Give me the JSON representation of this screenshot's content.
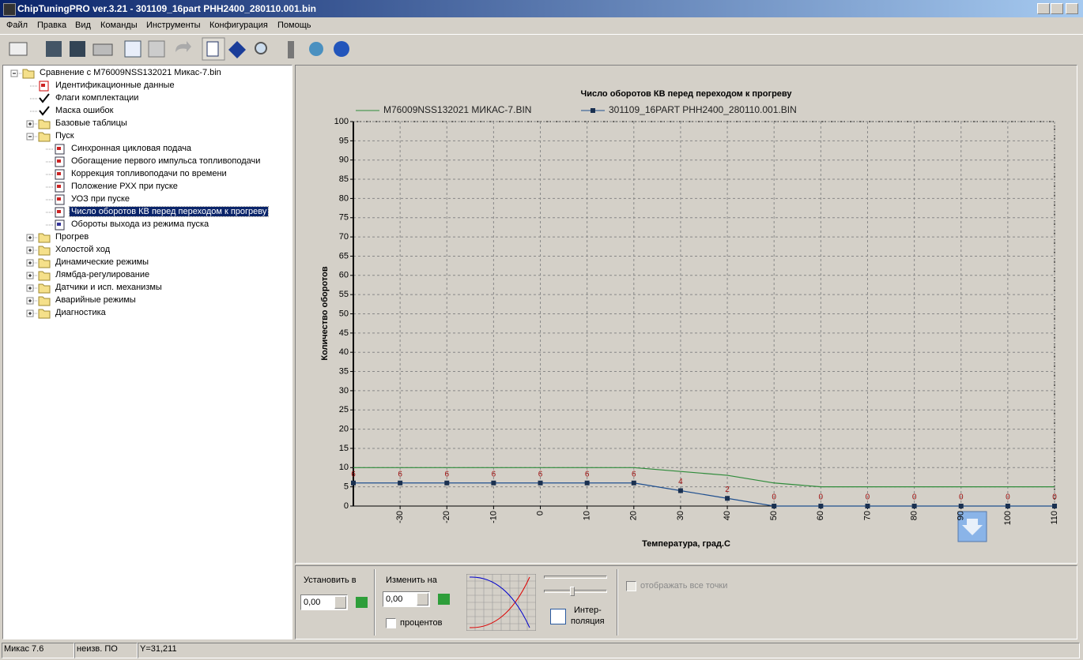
{
  "window": {
    "title": "ChipTuningPRO ver.3.21 - 301109_16part PHH2400_280110.001.bin"
  },
  "menu": [
    "Файл",
    "Правка",
    "Вид",
    "Команды",
    "Инструменты",
    "Конфигурация",
    "Помощь"
  ],
  "tree": [
    "Сравнение с M76009NSS132021 Микас-7.bin",
    "Идентификационные данные",
    "Флаги комплектации",
    "Маска ошибок",
    "Базовые таблицы",
    "Пуск",
    "Синхронная цикловая подача",
    "Обогащение первого импульса топливоподачи",
    "Коррекция топливоподачи по времени",
    "Положение РХХ при пуске",
    "УОЗ при пуске",
    "Число оборотов КВ перед переходом к прогреву",
    "Обороты выхода из режима пуска",
    "Прогрев",
    "Холостой ход",
    "Динамические режимы",
    "Лямбда-регулирование",
    "Датчики и исп. механизмы",
    "Аварийные режимы",
    "Диагностика"
  ],
  "chart_data": {
    "type": "line",
    "title": "Число оборотов КВ перед переходом к прогреву",
    "x_label": "Температура, град.С",
    "y_label": "Количество оборотов",
    "x": [
      -40,
      -30,
      -20,
      -10,
      0,
      10,
      20,
      30,
      40,
      50,
      60,
      70,
      80,
      90,
      100,
      110
    ],
    "series": [
      {
        "name": "M76009NSS132021 МИКАС-7.BIN",
        "color": "#2e8b3a",
        "values": [
          10,
          10,
          10,
          10,
          10,
          10,
          10,
          9,
          8,
          6,
          5,
          5,
          5,
          5,
          5,
          5
        ]
      },
      {
        "name": "301109_16PART PHH2400_280110.001.BIN",
        "color": "#1f4f8f",
        "marker_color": "#1a3050",
        "label_color": "#a01010",
        "values": [
          6,
          6,
          6,
          6,
          6,
          6,
          6,
          4,
          2,
          0,
          0,
          0,
          0,
          0,
          0,
          0
        ]
      }
    ],
    "xlim": [
      -40,
      110
    ],
    "ylim": [
      0,
      100
    ],
    "xticks": [
      -30,
      -20,
      -10,
      0,
      10,
      20,
      30,
      40,
      50,
      60,
      70,
      80,
      90,
      100,
      110
    ],
    "yticks": [
      0,
      5,
      10,
      15,
      20,
      25,
      30,
      35,
      40,
      45,
      50,
      55,
      60,
      65,
      70,
      75,
      80,
      85,
      90,
      95,
      100
    ],
    "grid": true
  },
  "controls": {
    "set_label": "Установить в",
    "set_value": "0,00",
    "change_label": "Изменить на",
    "change_value": "0,00",
    "percent_label": "процентов",
    "interp_line1": "Интер-",
    "interp_line2": "поляция",
    "show_all_label": "отображать все точки"
  },
  "status": [
    "Микас 7.6",
    "неизв. ПО",
    "Y=31,211"
  ]
}
